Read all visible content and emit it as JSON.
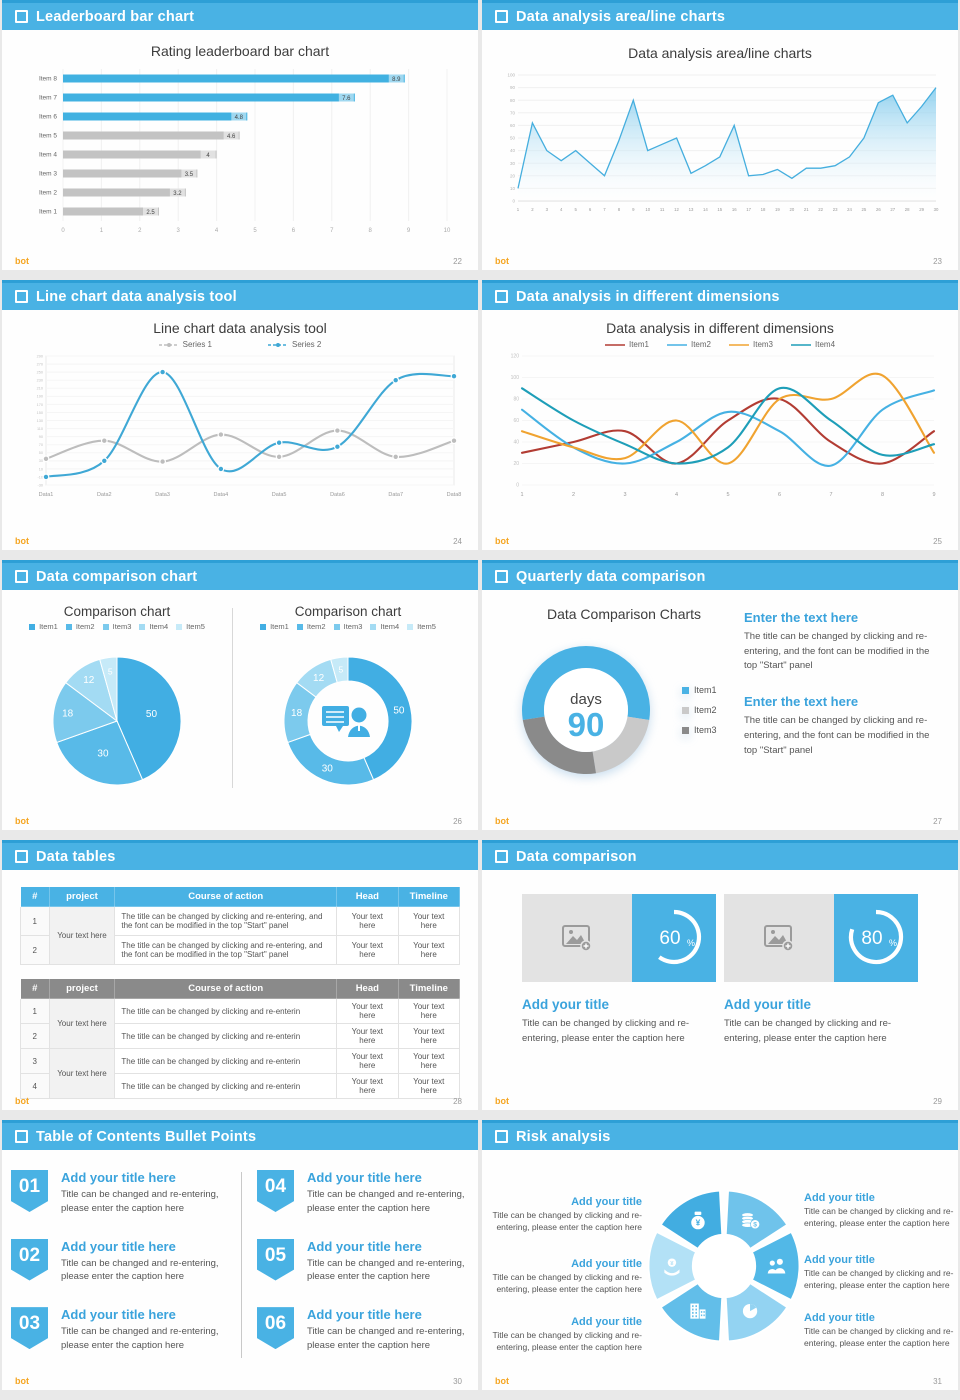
{
  "brand": {
    "logo": "bot"
  },
  "theme": {
    "accent": "#49b2e4",
    "accent_dark": "#2d9fd6",
    "heading_blue": "#3aa3dc",
    "text_dark": "#3d3d3d",
    "text_body": "#555555",
    "bar_gray": "#c3c3c3",
    "logo_orange": "#f5a623"
  },
  "slides": [
    {
      "name": "leaderboard-bar-chart",
      "header": "Leaderboard bar chart",
      "page": "22",
      "body": {
        "title": "Rating leaderboard bar chart"
      },
      "chart_data": {
        "type": "bar",
        "orientation": "horizontal",
        "categories": [
          "Item 8",
          "Item 7",
          "Item 6",
          "Item 5",
          "Item 4",
          "Item 3",
          "Item 2",
          "Item 1"
        ],
        "values": [
          8.9,
          7.6,
          4.8,
          4.6,
          4,
          3.5,
          3.2,
          2.5
        ],
        "highlight_count": 3,
        "highlight_color": "#41b1e1",
        "default_color": "#c3c3c3",
        "xlim": [
          0,
          10
        ],
        "xticks": [
          0,
          1,
          2,
          3,
          4,
          5,
          6,
          7,
          8,
          9,
          10
        ]
      }
    },
    {
      "name": "area-line-charts",
      "header": "Data analysis area/line charts",
      "page": "23",
      "body": {
        "title": "Data analysis area/line charts"
      },
      "chart_data": {
        "type": "area",
        "x": [
          1,
          2,
          3,
          4,
          5,
          6,
          7,
          8,
          9,
          10,
          11,
          12,
          13,
          14,
          15,
          16,
          17,
          18,
          19,
          20,
          21,
          22,
          23,
          24,
          25,
          26,
          27,
          28,
          29,
          30
        ],
        "values": [
          10,
          62,
          40,
          32,
          40,
          30,
          20,
          48,
          80,
          40,
          45,
          50,
          22,
          28,
          35,
          60,
          20,
          21,
          25,
          18,
          26,
          26,
          28,
          35,
          50,
          78,
          84,
          62,
          75,
          90
        ],
        "ylim": [
          0,
          100
        ],
        "ytick_step": 10,
        "line_color": "#45aede",
        "fill_top": "#7ec9ec",
        "fill_bottom": "#ffffff"
      }
    },
    {
      "name": "line-chart-tool",
      "header": "Line chart data analysis tool",
      "page": "24",
      "body": {
        "title": "Line chart data analysis tool"
      },
      "chart_data": {
        "type": "line",
        "categories": [
          "Data1",
          "Data2",
          "Data3",
          "Data4",
          "Data5",
          "Data6",
          "Data7",
          "Data8"
        ],
        "ylim": [
          -30,
          290
        ],
        "ytick_step": 20,
        "markers": true,
        "legend_position": "top",
        "series": [
          {
            "name": "Series 1",
            "color": "#bdbdbd",
            "values": [
              35,
              80,
              28,
              95,
              40,
              105,
              40,
              80
            ]
          },
          {
            "name": "Series 2",
            "color": "#3fa8d5",
            "values": [
              -10,
              30,
              250,
              10,
              75,
              65,
              230,
              240
            ]
          }
        ]
      }
    },
    {
      "name": "dimensions-analysis",
      "header": "Data analysis in different dimensions",
      "page": "25",
      "body": {
        "title": "Data analysis in different dimensions"
      },
      "chart_data": {
        "type": "line",
        "x": [
          1,
          2,
          3,
          4,
          5,
          6,
          7,
          8,
          9
        ],
        "ylim": [
          0,
          120
        ],
        "ytick_step": 20,
        "markers": false,
        "legend_position": "top",
        "series": [
          {
            "name": "Item1",
            "color": "#b23c33",
            "values": [
              30,
              40,
              50,
              20,
              60,
              80,
              40,
              20,
              50
            ]
          },
          {
            "name": "Item2",
            "color": "#45b1e3",
            "values": [
              70,
              35,
              20,
              40,
              68,
              50,
              18,
              70,
              88
            ]
          },
          {
            "name": "Item3",
            "color": "#f0a330",
            "values": [
              50,
              35,
              25,
              60,
              20,
              80,
              80,
              102,
              30
            ]
          },
          {
            "name": "Item4",
            "color": "#1e9eb8",
            "values": [
              90,
              60,
              38,
              20,
              35,
              90,
              60,
              28,
              38
            ]
          }
        ]
      }
    },
    {
      "name": "comparison-charts",
      "header": "Data comparison chart",
      "page": "26",
      "charts": [
        {
          "type": "pie",
          "title": "Comparison chart",
          "labels": [
            "Item1",
            "Item2",
            "Item3",
            "Item4",
            "Item5"
          ],
          "values": [
            50,
            30,
            18,
            12,
            5
          ],
          "colors": [
            "#41aee3",
            "#58bae8",
            "#7ccaed",
            "#a3dbf3",
            "#c6eaf8"
          ]
        },
        {
          "type": "donut",
          "title": "Comparison chart",
          "labels": [
            "Item1",
            "Item2",
            "Item3",
            "Item4",
            "Item5"
          ],
          "values": [
            50,
            30,
            18,
            12,
            5
          ],
          "colors": [
            "#41aee3",
            "#58bae8",
            "#7ccaed",
            "#a3dbf3",
            "#c6eaf8"
          ],
          "center_icon": "presenter-icon"
        }
      ]
    },
    {
      "name": "quarterly-comparison",
      "header": "Quarterly data comparison",
      "page": "27",
      "body": {
        "title": "Data Comparison Charts",
        "donut": {
          "type": "donut",
          "center_label": "days",
          "center_value": "90",
          "segments": [
            {
              "label": "Item1",
              "value": 55,
              "color": "#49b2e4"
            },
            {
              "label": "Item2",
              "value": 20,
              "color": "#c9c9c9"
            },
            {
              "label": "Item3",
              "value": 25,
              "color": "#8a8a8a"
            }
          ]
        },
        "blocks": [
          {
            "heading": "Enter the text here",
            "text": "The title can be changed by clicking and re-entering, and the font can be modified in the top \"Start\" panel"
          },
          {
            "heading": "Enter the text here",
            "text": "The title can be changed by clicking and re-entering, and the font can be modified in the top \"Start\" panel"
          }
        ]
      }
    },
    {
      "name": "data-tables",
      "header": "Data tables",
      "page": "28",
      "tables": [
        {
          "style": "blue",
          "headers": [
            "#",
            "project",
            "Course of action",
            "Head",
            "Timeline"
          ],
          "groups": [
            {
              "project": "Your text here",
              "rows": [
                {
                  "num": "1",
                  "course": "The title can be changed by clicking and re-entering, and the font can be modified in the top \"Start\" panel",
                  "head": "Your text here",
                  "timeline": "Your text here"
                },
                {
                  "num": "2",
                  "course": "The title can be changed by clicking and re-entering, and the font can be modified in the top \"Start\" panel",
                  "head": "Your text here",
                  "timeline": "Your text here"
                }
              ]
            }
          ]
        },
        {
          "style": "gray",
          "headers": [
            "#",
            "project",
            "Course of action",
            "Head",
            "Timeline"
          ],
          "groups": [
            {
              "project": "Your text here",
              "rows": [
                {
                  "num": "1",
                  "course": "The title can be changed by clicking and re-enterin",
                  "head": "Your text here",
                  "timeline": "Your text here"
                },
                {
                  "num": "2",
                  "course": "The title can be changed by clicking and re-enterin",
                  "head": "Your text here",
                  "timeline": "Your text here"
                }
              ]
            },
            {
              "project": "Your text here",
              "rows": [
                {
                  "num": "3",
                  "course": "The title can be changed by clicking and re-enterin",
                  "head": "Your text here",
                  "timeline": "Your text here"
                },
                {
                  "num": "4",
                  "course": "The title can be changed by clicking and re-enterin",
                  "head": "Your text here",
                  "timeline": "Your text here"
                }
              ]
            }
          ]
        }
      ]
    },
    {
      "name": "data-comparison",
      "header": "Data comparison",
      "page": "29",
      "cards": [
        {
          "percent": 60,
          "percent_label": "60",
          "percent_suffix": "%",
          "title": "Add your title",
          "caption": "Title can be changed by clicking and re-entering, please enter the caption here"
        },
        {
          "percent": 80,
          "percent_label": "80",
          "percent_suffix": "%",
          "title": "Add your title",
          "caption": "Title can be changed by clicking and re-entering, please enter the caption here"
        }
      ]
    },
    {
      "name": "toc-bullets",
      "header": "Table of Contents Bullet Points",
      "page": "30",
      "items": [
        {
          "num": "01",
          "title": "Add your title here",
          "caption": "Title can be changed and re-entering, please enter the caption here"
        },
        {
          "num": "02",
          "title": "Add your title here",
          "caption": "Title can be changed and re-entering, please enter the caption here"
        },
        {
          "num": "03",
          "title": "Add your title here",
          "caption": "Title can be changed and re-entering, please enter the caption here"
        },
        {
          "num": "04",
          "title": "Add your title here",
          "caption": "Title can be changed and re-entering, please enter the caption here"
        },
        {
          "num": "05",
          "title": "Add your title here",
          "caption": "Title can be changed and re-entering, please enter the caption here"
        },
        {
          "num": "06",
          "title": "Add your title here",
          "caption": "Title can be changed and re-entering, please enter the caption here"
        }
      ]
    },
    {
      "name": "risk-analysis",
      "header": "Risk analysis",
      "page": "31",
      "blocks": [
        {
          "title": "Add your title",
          "caption": "Title can be changed by clicking and re-entering, please enter the caption here"
        },
        {
          "title": "Add your title",
          "caption": "Title can be changed by clicking and re-entering, please enter the caption here"
        },
        {
          "title": "Add your title",
          "caption": "Title can be changed by clicking and re-entering, please enter the caption here"
        },
        {
          "title": "Add your title",
          "caption": "Title can be changed by clicking and re-entering, please enter the caption here"
        },
        {
          "title": "Add your title",
          "caption": "Title can be changed by clicking and re-entering, please enter the caption here"
        },
        {
          "title": "Add your title",
          "caption": "Title can be changed by clicking and re-entering, please enter the caption here"
        }
      ],
      "icons": [
        "money-bag-icon",
        "coins-icon",
        "people-icon",
        "pie-chart-icon",
        "building-icon",
        "hand-coin-icon"
      ],
      "wheel_colors": [
        "#42ade1",
        "#6fc3eb",
        "#52b8e7",
        "#93d3f2",
        "#62bee9",
        "#b3e1f6"
      ]
    }
  ]
}
